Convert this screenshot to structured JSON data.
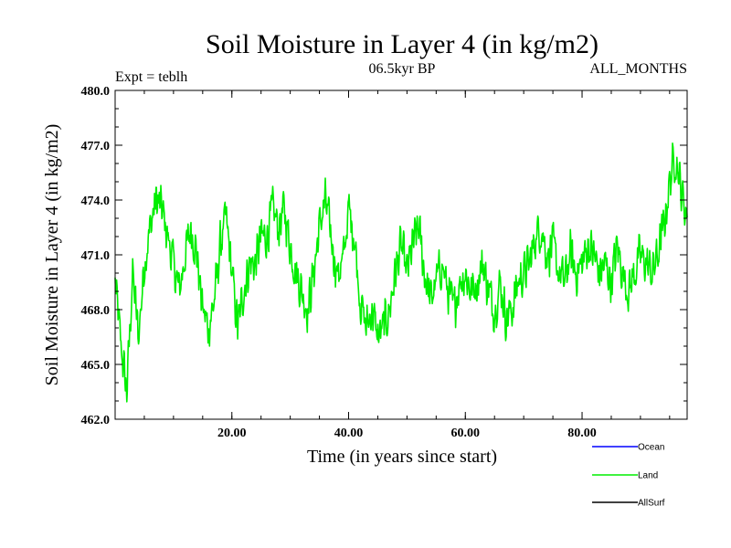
{
  "chart_data": {
    "type": "line",
    "title": "Soil Moisture in Layer 4 (in kg/m2)",
    "subtitle_left": "Expt = teblh",
    "subtitle_center": "06.5kyr BP",
    "subtitle_right": "ALL_MONTHS",
    "xlabel": "Time (in years since start)",
    "ylabel": "Soil Moisture in Layer 4 (in kg/m2)",
    "xlim": [
      0,
      98
    ],
    "ylim": [
      462.0,
      480.0
    ],
    "x_ticks": [
      20,
      40,
      60,
      80
    ],
    "x_tick_labels": [
      "20.00",
      "40.00",
      "60.00",
      "80.00"
    ],
    "y_ticks": [
      462,
      465,
      468,
      471,
      474,
      477,
      480
    ],
    "y_tick_labels": [
      "462.0",
      "465.0",
      "468.0",
      "471.0",
      "474.0",
      "477.0",
      "480.0"
    ],
    "legend": [
      {
        "name": "Ocean",
        "color": "#0000ff"
      },
      {
        "name": "Land",
        "color": "#00ee00"
      },
      {
        "name": "AllSurf",
        "color": "#000000"
      }
    ],
    "series": [
      {
        "name": "Land",
        "color": "#00ee00",
        "anchors": [
          [
            0,
            469.5
          ],
          [
            1,
            466.0
          ],
          [
            2,
            463.5
          ],
          [
            3,
            470.0
          ],
          [
            4,
            466.5
          ],
          [
            5,
            470.5
          ],
          [
            6,
            472.5
          ],
          [
            7,
            474.0
          ],
          [
            8,
            473.5
          ],
          [
            9,
            472.0
          ],
          [
            10,
            470.5
          ],
          [
            11,
            469.0
          ],
          [
            12,
            471.0
          ],
          [
            13,
            472.5
          ],
          [
            14,
            471.0
          ],
          [
            15,
            468.0
          ],
          [
            16,
            467.0
          ],
          [
            17,
            468.5
          ],
          [
            18,
            471.5
          ],
          [
            19,
            473.0
          ],
          [
            20,
            470.0
          ],
          [
            21,
            467.0
          ],
          [
            22,
            469.0
          ],
          [
            23,
            470.5
          ],
          [
            24,
            470.5
          ],
          [
            25,
            472.0
          ],
          [
            26,
            472.0
          ],
          [
            27,
            473.5
          ],
          [
            28,
            472.5
          ],
          [
            29,
            473.5
          ],
          [
            30,
            471.5
          ],
          [
            31,
            470.0
          ],
          [
            32,
            469.0
          ],
          [
            33,
            468.0
          ],
          [
            34,
            470.0
          ],
          [
            35,
            472.5
          ],
          [
            36,
            474.0
          ],
          [
            37,
            472.0
          ],
          [
            38,
            470.0
          ],
          [
            39,
            470.5
          ],
          [
            40,
            473.5
          ],
          [
            41,
            472.0
          ],
          [
            42,
            468.5
          ],
          [
            43,
            467.0
          ],
          [
            44,
            468.0
          ],
          [
            45,
            466.5
          ],
          [
            46,
            467.0
          ],
          [
            47,
            468.0
          ],
          [
            48,
            470.0
          ],
          [
            49,
            471.5
          ],
          [
            50,
            470.0
          ],
          [
            51,
            471.5
          ],
          [
            52,
            472.5
          ],
          [
            53,
            470.0
          ],
          [
            54,
            468.5
          ],
          [
            55,
            469.5
          ],
          [
            56,
            470.5
          ],
          [
            57,
            469.0
          ],
          [
            58,
            468.0
          ],
          [
            59,
            469.5
          ],
          [
            60,
            470.0
          ],
          [
            61,
            469.0
          ],
          [
            62,
            469.5
          ],
          [
            63,
            470.5
          ],
          [
            64,
            469.0
          ],
          [
            65,
            468.0
          ],
          [
            66,
            469.5
          ],
          [
            67,
            467.5
          ],
          [
            68,
            468.0
          ],
          [
            69,
            469.5
          ],
          [
            70,
            470.0
          ],
          [
            71,
            470.5
          ],
          [
            72,
            472.0
          ],
          [
            73,
            472.5
          ],
          [
            74,
            471.0
          ],
          [
            75,
            471.5
          ],
          [
            76,
            470.0
          ],
          [
            77,
            469.5
          ],
          [
            78,
            471.0
          ],
          [
            79,
            470.0
          ],
          [
            80,
            470.5
          ],
          [
            81,
            471.5
          ],
          [
            82,
            471.0
          ],
          [
            83,
            470.0
          ],
          [
            84,
            470.5
          ],
          [
            85,
            469.5
          ],
          [
            86,
            471.5
          ],
          [
            87,
            470.0
          ],
          [
            88,
            469.0
          ],
          [
            89,
            470.0
          ],
          [
            90,
            471.0
          ],
          [
            91,
            470.5
          ],
          [
            92,
            470.0
          ],
          [
            93,
            471.0
          ],
          [
            94,
            472.5
          ],
          [
            95,
            475.0
          ],
          [
            96,
            476.5
          ],
          [
            97,
            474.5
          ],
          [
            98,
            473.0
          ]
        ]
      }
    ]
  }
}
